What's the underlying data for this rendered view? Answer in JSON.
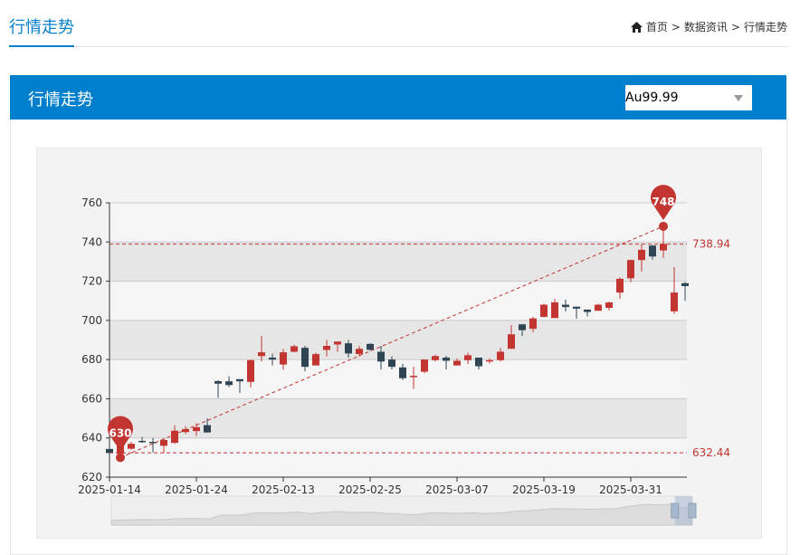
{
  "page": {
    "title": "行情走势"
  },
  "breadcrumb": {
    "home": "首页",
    "sep": ">",
    "items": [
      "数据资讯",
      "行情走势"
    ]
  },
  "panel": {
    "title": "行情走势",
    "select_value": "Au99.99"
  },
  "colors": {
    "up": "#c23531",
    "down": "#2f4554",
    "accent": "#0080cc"
  },
  "chart_data": {
    "type": "candlestick",
    "ylim": [
      620,
      760
    ],
    "yticks": [
      620,
      640,
      660,
      680,
      700,
      720,
      740,
      760
    ],
    "xtick_labels": [
      "2025-01-14",
      "2025-01-24",
      "2025-02-13",
      "2025-02-25",
      "2025-03-07",
      "2025-03-19",
      "2025-03-31"
    ],
    "xtick_indices": [
      0,
      8,
      16,
      24,
      32,
      40,
      48
    ],
    "ohlc": [
      [
        634.4,
        632.3,
        630.8,
        635
      ],
      [
        632,
        636,
        630,
        637
      ],
      [
        634.5,
        637,
        634,
        638
      ],
      [
        638.5,
        638,
        637.5,
        640.5
      ],
      [
        638,
        637.5,
        632.6,
        640
      ],
      [
        636,
        639,
        632.3,
        640
      ],
      [
        637.5,
        643.7,
        637,
        646.5
      ],
      [
        643,
        644.5,
        642,
        646
      ],
      [
        643.5,
        645.5,
        641,
        647.5
      ],
      [
        646.5,
        642.8,
        642.8,
        650
      ],
      [
        669,
        667.7,
        660.5,
        669.5
      ],
      [
        668.9,
        667,
        666,
        671.5
      ],
      [
        670,
        668.9,
        663,
        670
      ],
      [
        668.6,
        679.7,
        665.8,
        680
      ],
      [
        681.8,
        683.7,
        679,
        692
      ],
      [
        681,
        680,
        677,
        683
      ],
      [
        677.5,
        683.7,
        674.8,
        685.5
      ],
      [
        684,
        686.8,
        683.7,
        687.5
      ],
      [
        686,
        676.3,
        674,
        687
      ],
      [
        677,
        682.8,
        677,
        683.5
      ],
      [
        684.9,
        687,
        681.6,
        690
      ],
      [
        687.7,
        689.2,
        684,
        689.2
      ],
      [
        688.3,
        683.1,
        681,
        690
      ],
      [
        682.8,
        685.5,
        681.6,
        687
      ],
      [
        688,
        685,
        684.5,
        688.3
      ],
      [
        684,
        679,
        674.9,
        687
      ],
      [
        680,
        676.3,
        675,
        681.6
      ],
      [
        676,
        670.5,
        669.5,
        677.8
      ],
      [
        671,
        671.7,
        665,
        676.3
      ],
      [
        673.8,
        680,
        673,
        680
      ],
      [
        679.7,
        681.8,
        679,
        682.5
      ],
      [
        681,
        679.4,
        675,
        682
      ],
      [
        677,
        679.4,
        677,
        680.5
      ],
      [
        679.7,
        682.2,
        677.7,
        683.5
      ],
      [
        681,
        676.6,
        675,
        681
      ],
      [
        679,
        679.7,
        678,
        680.5
      ],
      [
        679.7,
        684,
        679,
        686
      ],
      [
        685.5,
        692.9,
        685.5,
        697.6
      ],
      [
        698,
        695,
        692,
        698
      ],
      [
        695.7,
        701,
        694,
        701.7
      ],
      [
        701.8,
        708,
        701.5,
        708.5
      ],
      [
        701.2,
        709.2,
        701.2,
        711
      ],
      [
        708,
        706.8,
        704.5,
        710.6
      ],
      [
        707,
        706,
        700.8,
        707
      ],
      [
        705.5,
        704.3,
        702,
        705.5
      ],
      [
        704.9,
        708,
        704.9,
        708.5
      ],
      [
        706.4,
        709.2,
        705,
        709.5
      ],
      [
        714.2,
        721.2,
        711,
        722
      ],
      [
        721.5,
        730.8,
        719.5,
        731
      ],
      [
        730.8,
        736,
        725,
        739
      ],
      [
        738.2,
        732.6,
        731,
        738.5
      ],
      [
        735.7,
        739,
        731.9,
        748
      ],
      [
        704.6,
        714.2,
        703.4,
        727.2
      ],
      [
        719,
        717.5,
        710,
        719.5
      ]
    ],
    "ohlc_order": [
      "open",
      "close",
      "low",
      "high"
    ],
    "mark_points": [
      {
        "label": "748",
        "value": 748,
        "index": 51
      },
      {
        "label": "630",
        "value": 630,
        "index": 1
      }
    ],
    "mark_lines": [
      {
        "label": "738.94",
        "value": 738.94
      },
      {
        "label": "632.44",
        "value": 632.44
      }
    ],
    "trend_line": {
      "from": {
        "index": 1,
        "value": 630
      },
      "to": {
        "index": 51,
        "value": 748
      }
    },
    "data_zoom": {
      "start_percent": 97,
      "end_percent": 100
    }
  }
}
